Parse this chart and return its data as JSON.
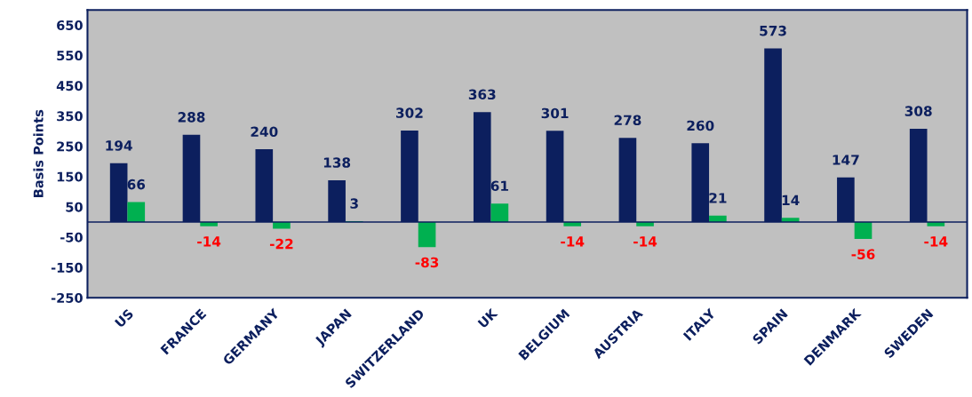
{
  "chart_data": {
    "type": "bar",
    "ylabel": "Basis Points",
    "categories": [
      "US",
      "FRANCE",
      "GERMANY",
      "JAPAN",
      "SWITZERLAND",
      "UK",
      "BELGIUM",
      "AUSTRIA",
      "ITALY",
      "SPAIN",
      "DENMARK",
      "SWEDEN"
    ],
    "series": [
      {
        "color": "#0c1f5e",
        "values": [
          194,
          288,
          240,
          138,
          302,
          363,
          301,
          278,
          260,
          573,
          147,
          308
        ]
      },
      {
        "color": "#00b050",
        "values": [
          66,
          -14,
          -22,
          3,
          -83,
          61,
          -14,
          -14,
          21,
          14,
          -56,
          -14
        ]
      }
    ],
    "ylim": [
      -250,
      700
    ],
    "yticks": [
      -250,
      -150,
      -50,
      50,
      150,
      250,
      350,
      450,
      550,
      650
    ],
    "data_labels": true,
    "grid": false,
    "legend": false
  }
}
